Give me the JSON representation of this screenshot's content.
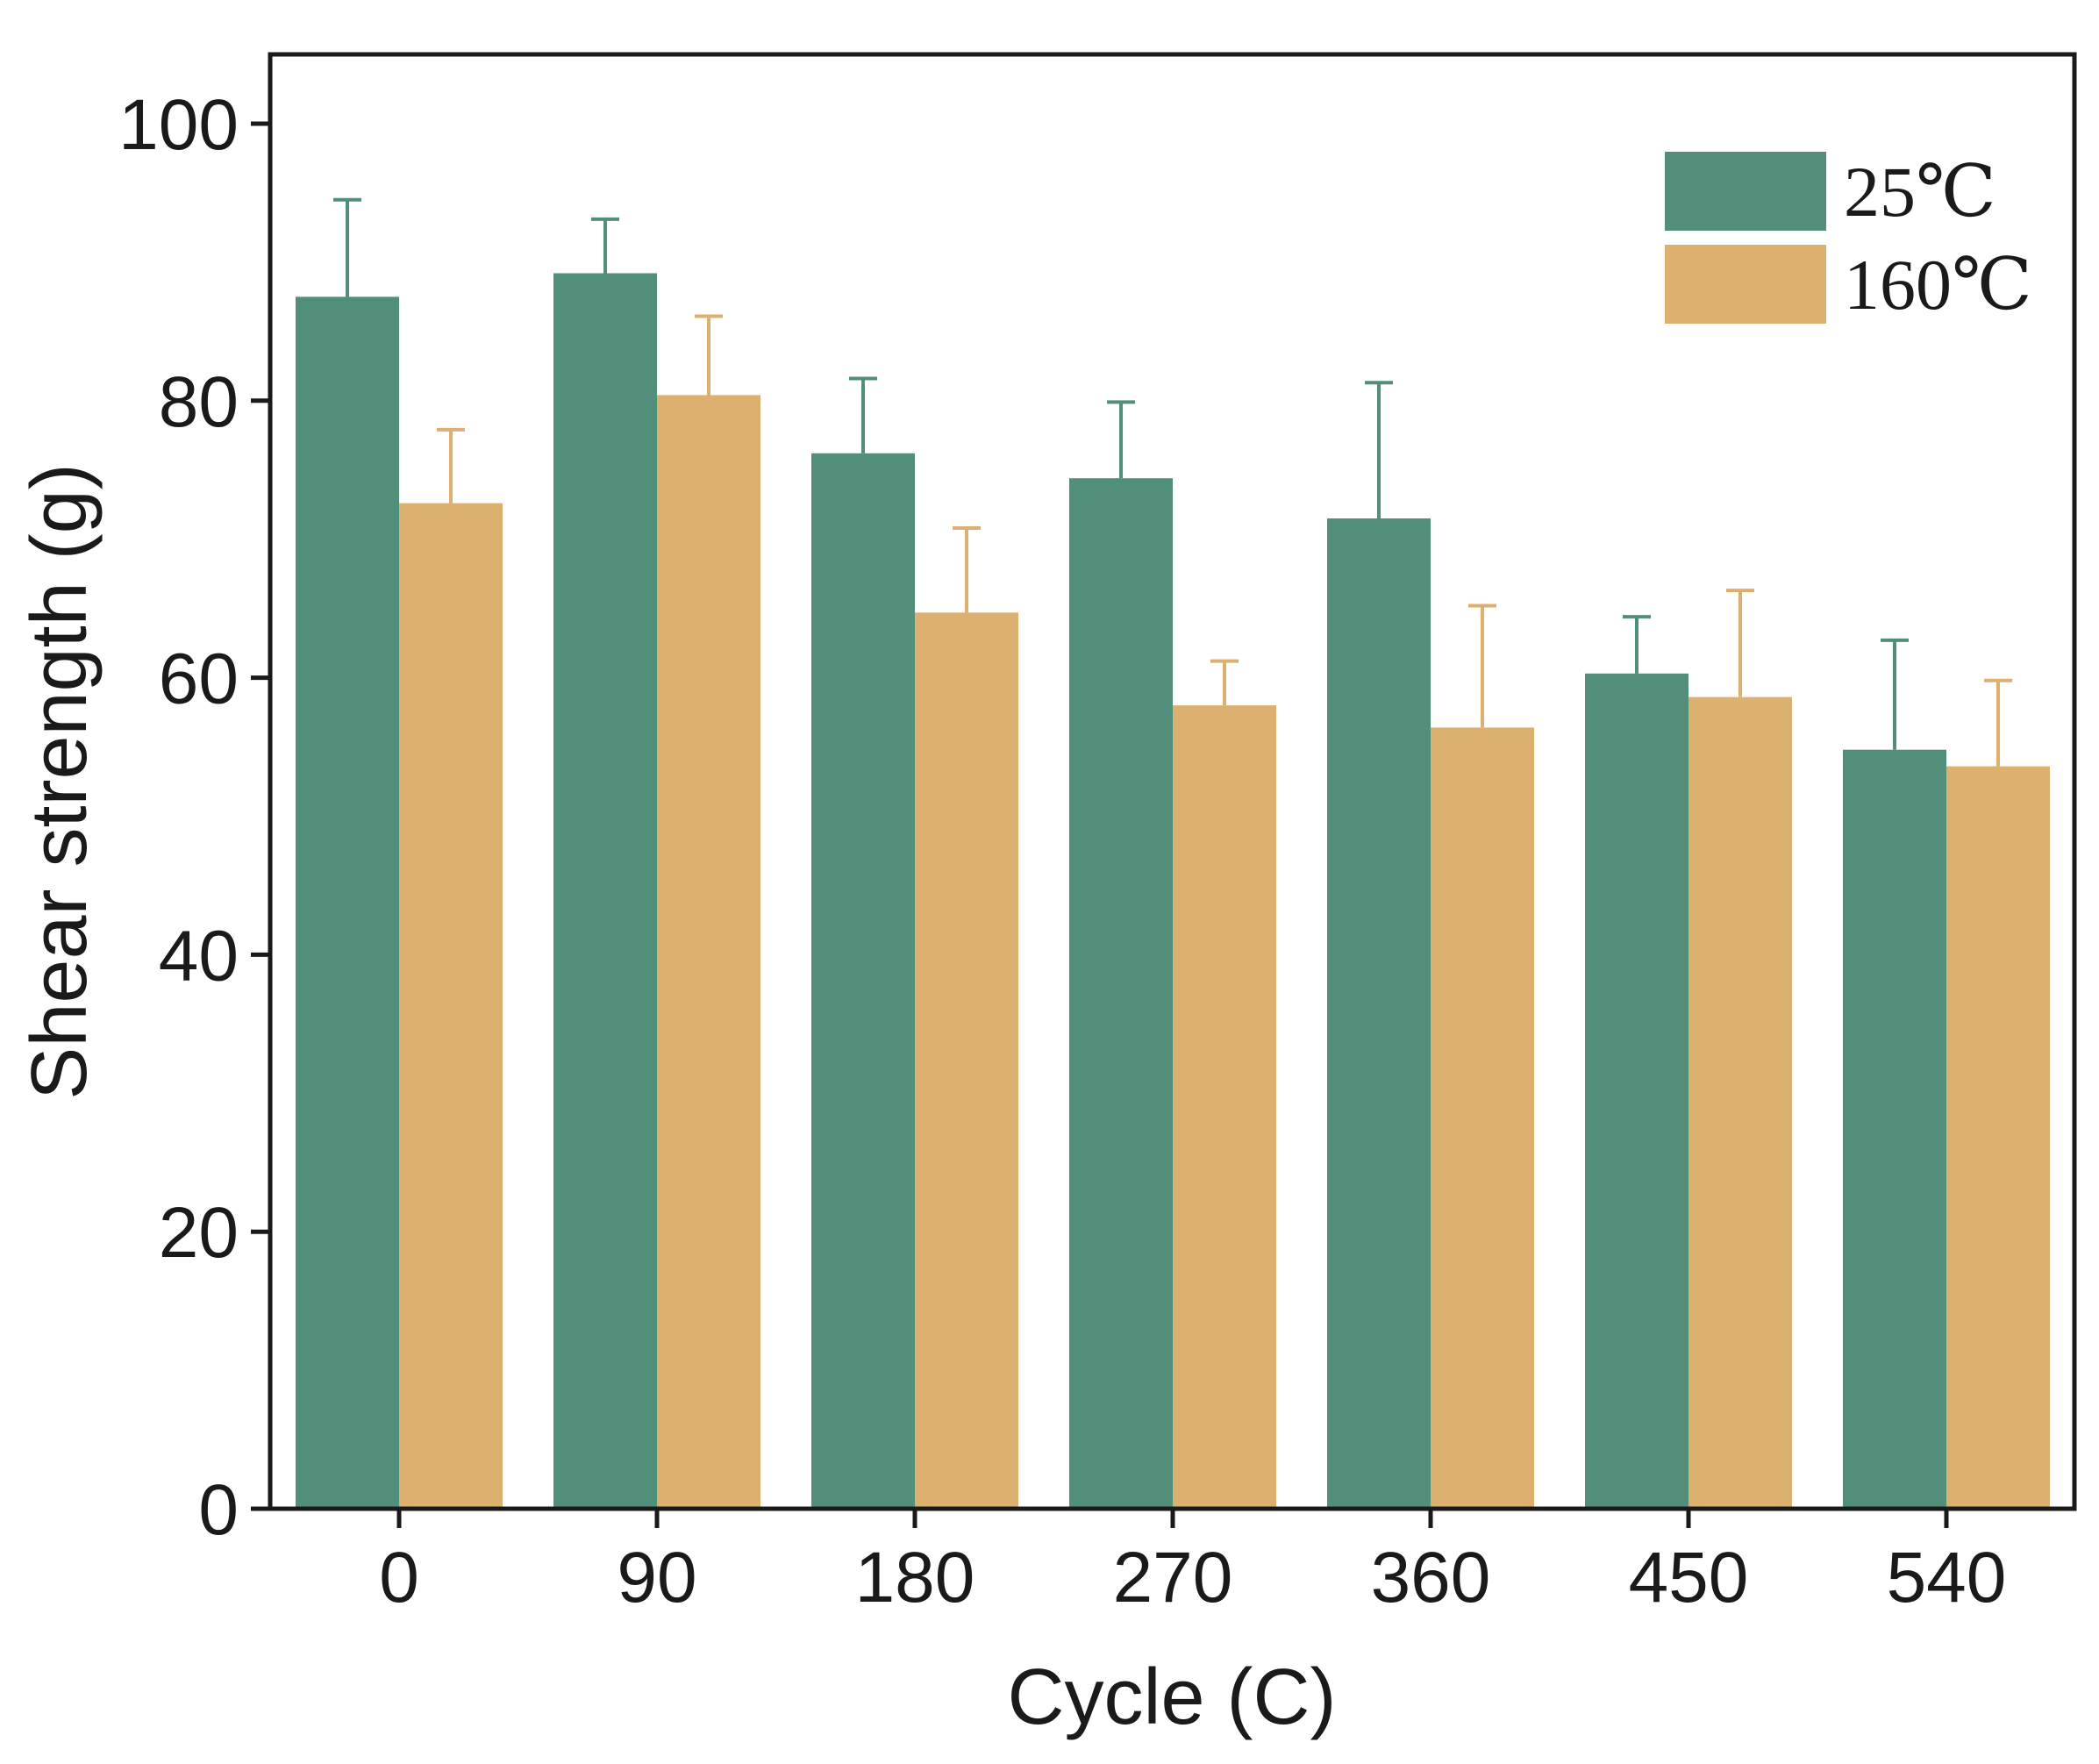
{
  "chart_data": {
    "type": "bar",
    "title": "",
    "xlabel": "Cycle (C)",
    "ylabel": "Shear strength (g)",
    "categories": [
      "0",
      "90",
      "180",
      "270",
      "360",
      "450",
      "540"
    ],
    "ylim": [
      0,
      105
    ],
    "yticks": [
      "0",
      "20",
      "40",
      "60",
      "80",
      "100"
    ],
    "grid": false,
    "legend_position": "top-right",
    "series": [
      {
        "name": "25℃",
        "color": "#528f7a",
        "values": [
          87.5,
          89.2,
          76.2,
          74.4,
          71.5,
          60.3,
          54.8
        ],
        "errors": [
          7.0,
          3.9,
          5.4,
          5.5,
          9.8,
          4.1,
          7.9
        ]
      },
      {
        "name": "160℃",
        "color": "#dcb06e",
        "values": [
          72.6,
          80.4,
          64.7,
          58.0,
          56.4,
          58.6,
          53.6
        ],
        "errors": [
          5.3,
          5.7,
          6.1,
          3.2,
          8.8,
          7.7,
          6.2
        ]
      }
    ]
  }
}
